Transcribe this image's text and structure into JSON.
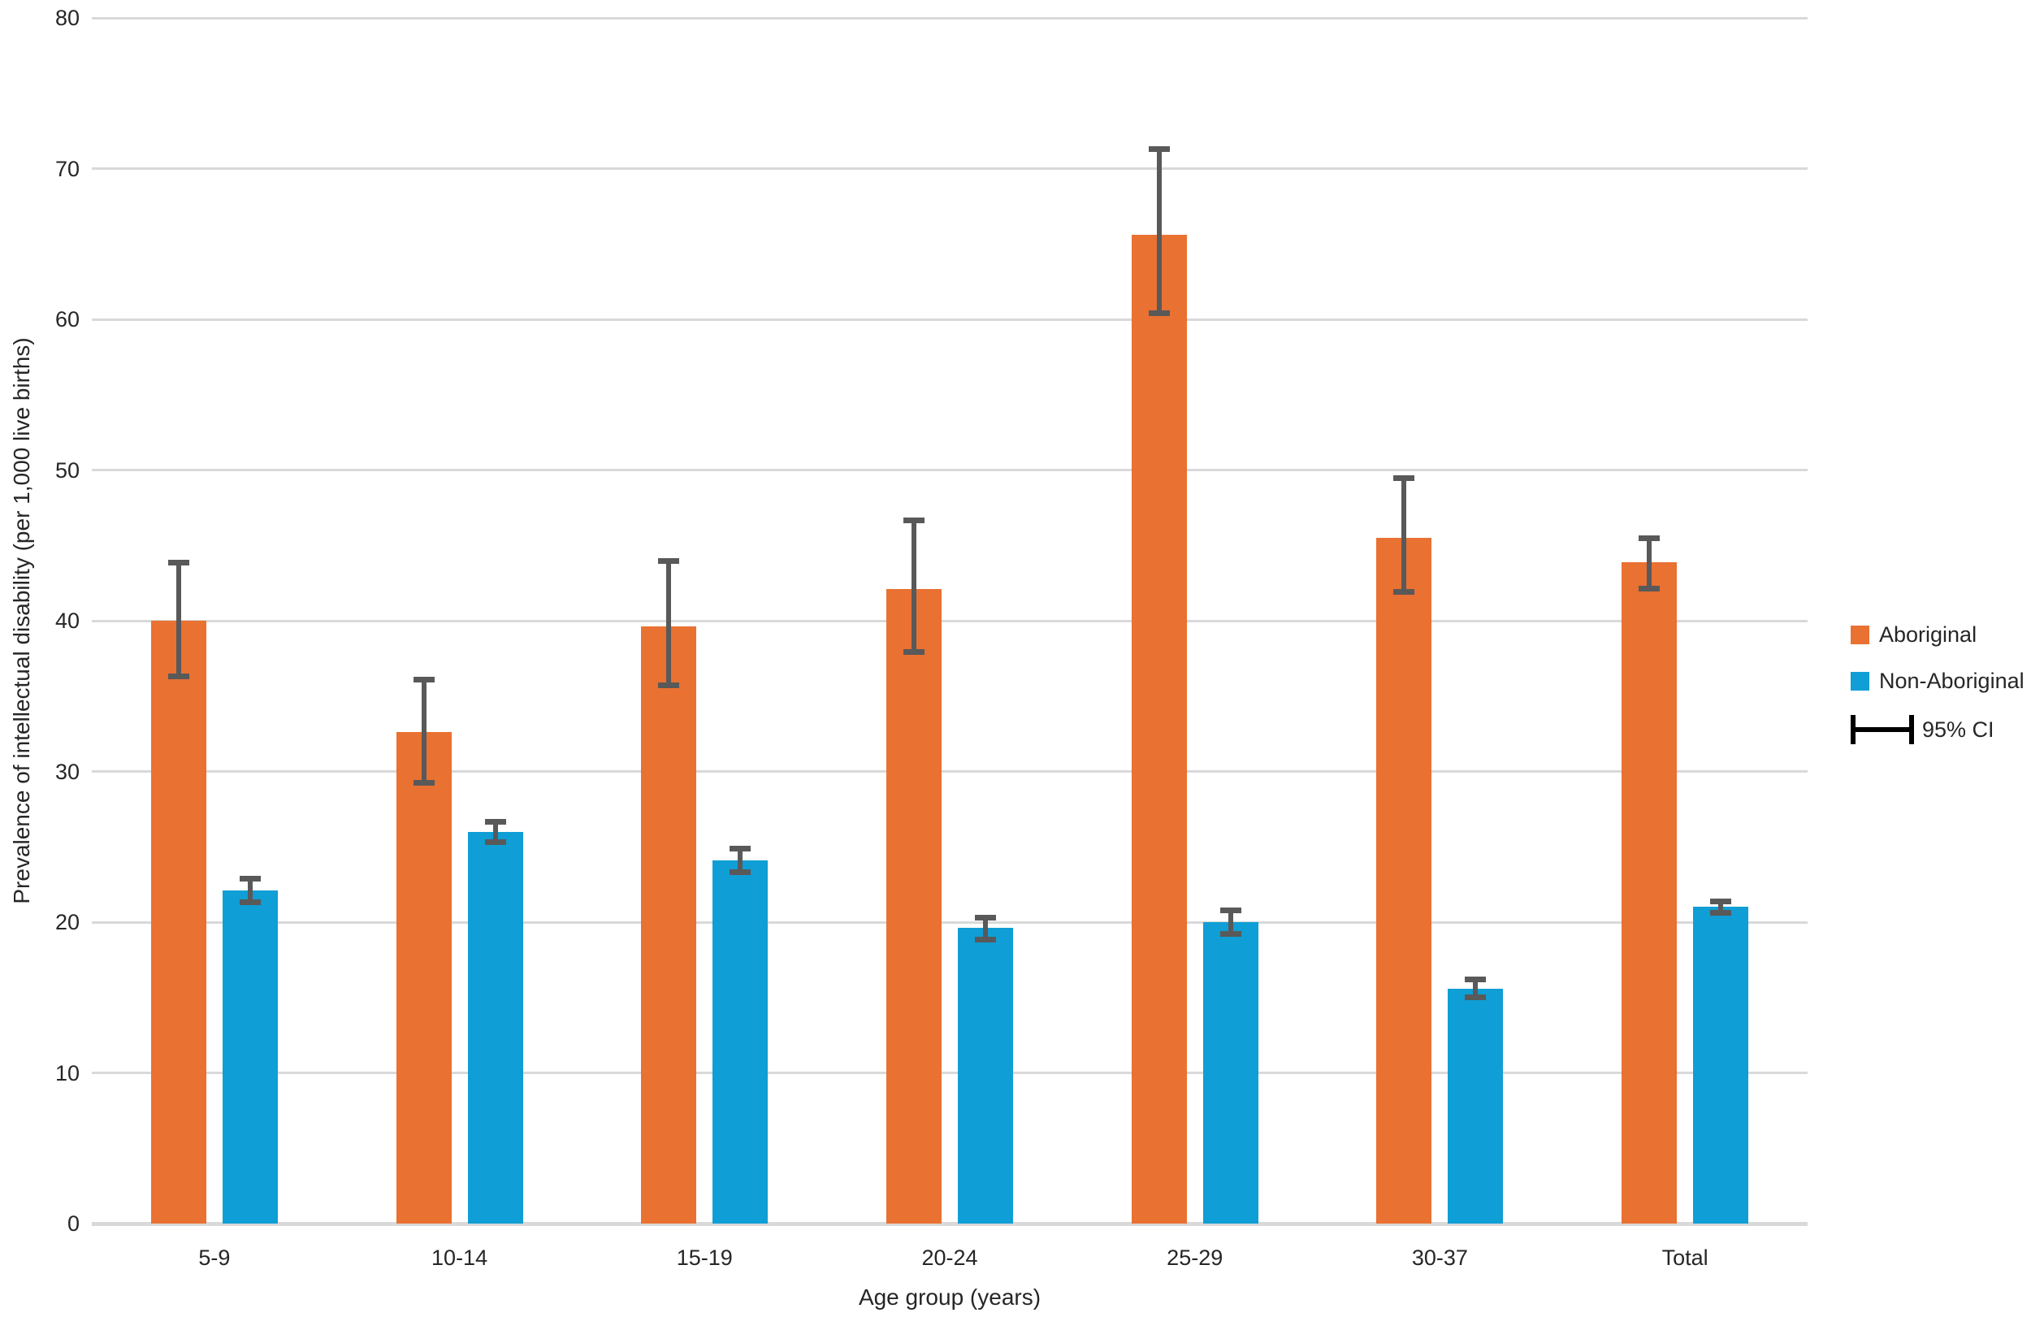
{
  "chart_data": {
    "type": "bar",
    "title": "",
    "xlabel": "Age group (years)",
    "ylabel": "Prevalence of intellectual disability (per 1,000 live births)",
    "ylim": [
      0,
      80
    ],
    "yticks": [
      0,
      10,
      20,
      30,
      40,
      50,
      60,
      70,
      80
    ],
    "grid": true,
    "legend_position": "right",
    "ci_label": "95% CI",
    "categories": [
      "5-9",
      "10-14",
      "15-19",
      "20-24",
      "25-29",
      "30-37",
      "Total"
    ],
    "series": [
      {
        "name": "Aboriginal",
        "color": "#E97132",
        "values": [
          40.0,
          32.6,
          39.6,
          42.1,
          65.6,
          45.5,
          43.9
        ],
        "ci_low": [
          36.3,
          29.2,
          35.7,
          37.9,
          60.4,
          41.9,
          42.1
        ],
        "ci_high": [
          43.9,
          36.1,
          44.0,
          46.7,
          71.3,
          49.5,
          45.5
        ]
      },
      {
        "name": "Non-Aboriginal",
        "color": "#0F9ED5",
        "values": [
          22.1,
          26.0,
          24.1,
          19.6,
          20.0,
          15.6,
          21.0
        ],
        "ci_low": [
          21.3,
          25.3,
          23.3,
          18.8,
          19.2,
          15.0,
          20.6
        ],
        "ci_high": [
          22.9,
          26.7,
          24.9,
          20.3,
          20.8,
          16.2,
          21.4
        ]
      }
    ]
  },
  "colors": {
    "error_bar": "#595959",
    "gridline": "#D9D9D9",
    "text": "#262626",
    "ci_glyph": "#000000"
  }
}
